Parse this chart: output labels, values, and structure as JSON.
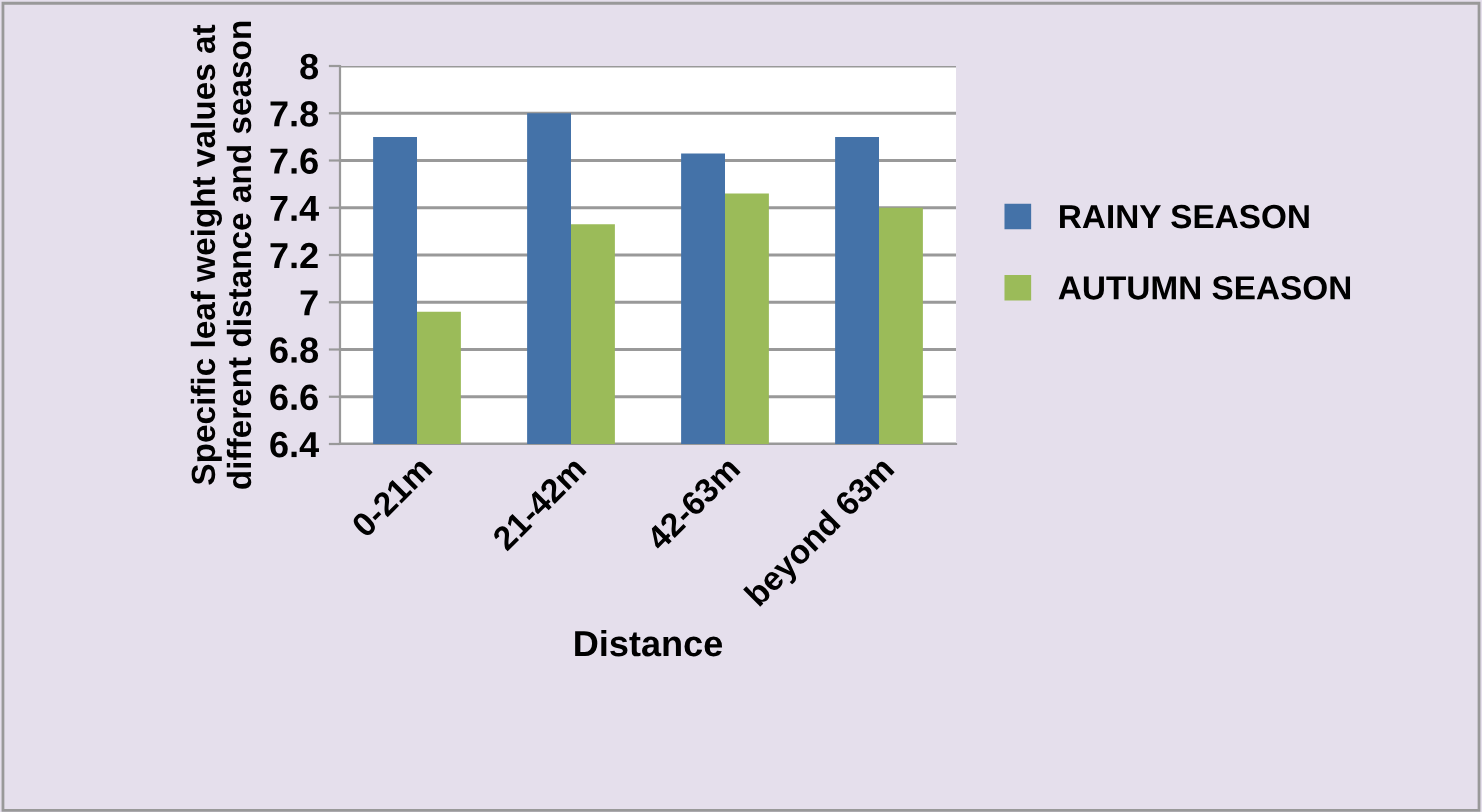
{
  "chart_data": {
    "type": "bar",
    "xlabel": "Distance",
    "ylabel": "Specific leaf weight values at different distance and season",
    "categories": [
      "0-21m",
      "21-42m",
      "42-63m",
      "beyond 63m"
    ],
    "series": [
      {
        "name": "RAINY SEASON",
        "color": "#4472a8",
        "values": [
          7.7,
          7.8,
          7.63,
          7.7
        ]
      },
      {
        "name": "AUTUMN SEASON",
        "color": "#9bbb59",
        "values": [
          6.96,
          7.33,
          7.46,
          7.4
        ]
      }
    ],
    "ylim": [
      6.4,
      8
    ],
    "yticks": [
      6.4,
      6.6,
      6.8,
      7,
      7.2,
      7.4,
      7.6,
      7.8,
      8
    ],
    "grid": "y",
    "legend": "right"
  }
}
